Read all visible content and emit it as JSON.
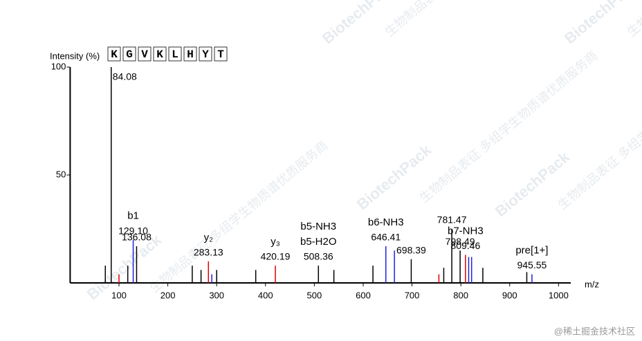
{
  "chart_data": {
    "type": "stem",
    "y_label": "Intensity (%)",
    "x_label": "m/z",
    "sequence": [
      "K",
      "G",
      "V",
      "K",
      "L",
      "H",
      "Y",
      "T"
    ],
    "xlim": [
      0,
      1025
    ],
    "ylim": [
      0,
      100
    ],
    "xticks": [
      100,
      200,
      300,
      400,
      500,
      600,
      700,
      800,
      900,
      1000
    ],
    "yticks": [
      50,
      100
    ],
    "x": [
      72,
      84.08,
      100,
      118,
      129.1,
      136.08,
      250,
      268,
      283.13,
      290,
      300,
      380,
      420.19,
      508.36,
      540,
      620,
      646.41,
      664,
      698.39,
      755,
      765,
      781.47,
      798.49,
      809.46,
      816,
      822,
      845,
      935,
      945.55
    ],
    "values": [
      8,
      100,
      4,
      8,
      20,
      17,
      8,
      6,
      10,
      4,
      6,
      6,
      8,
      8,
      6,
      8,
      17,
      15,
      11,
      4,
      7,
      25,
      15,
      13,
      12,
      12,
      7,
      5,
      4
    ],
    "colors": [
      "#000000",
      "#000000",
      "#e00000",
      "#000000",
      "#2020e0",
      "#000000",
      "#000000",
      "#000000",
      "#e00000",
      "#2020e0",
      "#000000",
      "#000000",
      "#e00000",
      "#000000",
      "#000000",
      "#000000",
      "#2020e0",
      "#2020e0",
      "#000000",
      "#e00000",
      "#000000",
      "#000000",
      "#000000",
      "#e00000",
      "#2020e0",
      "#2020e0",
      "#000000",
      "#000000",
      "#2020e0"
    ],
    "peak_labels": [
      null,
      "84.08",
      null,
      null,
      "129.10",
      "136.08",
      null,
      null,
      "283.13",
      null,
      null,
      null,
      "420.19",
      "508.36",
      null,
      null,
      "646.41",
      null,
      "698.39",
      null,
      null,
      "781.47",
      "798.49",
      "809.46",
      null,
      null,
      null,
      null,
      "945.55"
    ],
    "ion_labels": [
      null,
      null,
      null,
      null,
      [
        "b1"
      ],
      null,
      null,
      null,
      [
        "y₂"
      ],
      null,
      null,
      null,
      [
        "y₃"
      ],
      [
        "b5-NH3",
        "b5-H2O"
      ],
      null,
      null,
      [
        "b6-NH3"
      ],
      null,
      null,
      null,
      null,
      null,
      null,
      [
        "b7-NH3"
      ],
      null,
      null,
      null,
      null,
      [
        "pre[1+]"
      ]
    ]
  },
  "watermark": {
    "brand": "BiotechPack",
    "slogan": "生物制品表征 多组学生物质谱优质服务商"
  },
  "footer": "@稀土掘金技术社区"
}
